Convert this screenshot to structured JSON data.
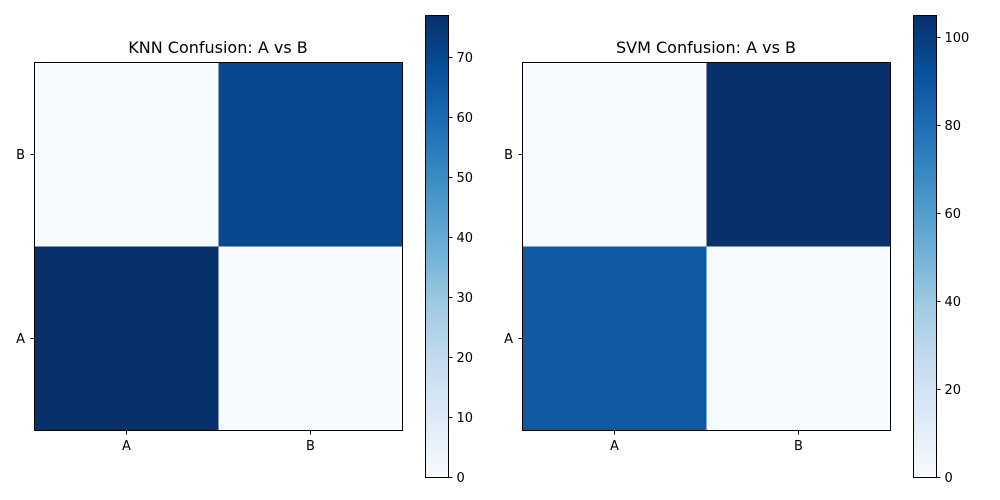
{
  "chart_data": [
    {
      "type": "heatmap",
      "title": "KNN Confusion: A vs B",
      "x_categories": [
        "A",
        "B"
      ],
      "y_categories": [
        "A",
        "B"
      ],
      "values": [
        [
          77,
          0
        ],
        [
          0,
          70
        ]
      ],
      "colormap": "Blues",
      "colorbar": {
        "min": 0,
        "max": 77,
        "ticks": [
          0,
          10,
          20,
          30,
          40,
          50,
          60,
          70
        ]
      },
      "grid": false
    },
    {
      "type": "heatmap",
      "title": "SVM Confusion: A vs B",
      "x_categories": [
        "A",
        "B"
      ],
      "y_categories": [
        "A",
        "B"
      ],
      "values": [
        [
          88,
          0
        ],
        [
          0,
          105
        ]
      ],
      "colormap": "Blues",
      "colorbar": {
        "min": 0,
        "max": 105,
        "ticks": [
          0,
          20,
          40,
          60,
          80,
          100
        ]
      },
      "grid": false
    }
  ]
}
